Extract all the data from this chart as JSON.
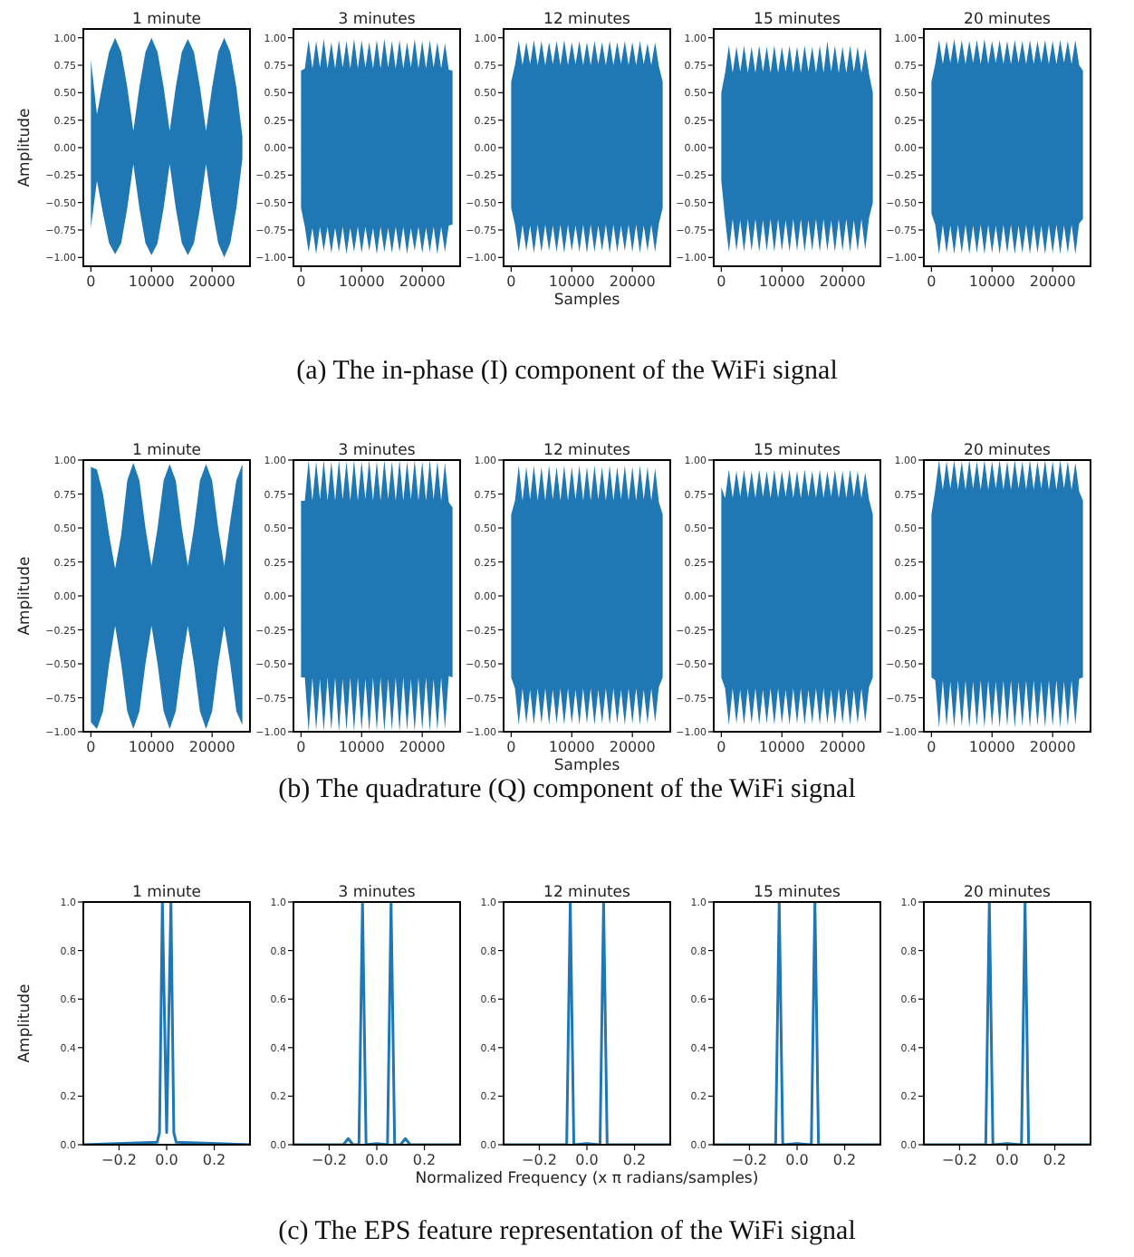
{
  "chart_data": [
    {
      "type": "area",
      "title": "1 minute",
      "ylabel": "Amplitude",
      "xlim": [
        -1250,
        26250
      ],
      "ylim": [
        -1.08,
        1.08
      ],
      "xticks": [
        0,
        10000,
        20000
      ],
      "yticks": [
        {
          "value": -1,
          "label": "−1.00"
        },
        {
          "value": -0.75,
          "label": "−0.75"
        },
        {
          "value": -0.5,
          "label": "−0.50"
        },
        {
          "value": -0.25,
          "label": "−0.25"
        },
        {
          "value": 0,
          "label": "0.00"
        },
        {
          "value": 0.25,
          "label": "0.25"
        },
        {
          "value": 0.5,
          "label": "0.50"
        },
        {
          "value": 0.75,
          "label": "0.75"
        },
        {
          "value": 1,
          "label": "1.00"
        }
      ],
      "x": [
        0,
        1000,
        2000,
        3000,
        4000,
        5000,
        6000,
        7000,
        8000,
        9000,
        10000,
        11000,
        12000,
        13000,
        14000,
        15000,
        16000,
        17000,
        18000,
        19000,
        20000,
        21000,
        22000,
        23000,
        24000,
        25000
      ],
      "series": [
        {
          "color": "#1f77b4",
          "values": [
            0.8,
            0.3,
            0.6,
            0.87,
            1,
            0.87,
            0.55,
            0.15,
            0.55,
            0.87,
            1,
            0.87,
            0.55,
            0.15,
            0.55,
            0.87,
            0.99,
            0.87,
            0.55,
            0.15,
            0.55,
            0.87,
            1,
            0.87,
            0.55,
            0.1
          ]
        },
        {
          "color": "#1f77b4",
          "values": [
            -0.73,
            -0.3,
            -0.6,
            -0.87,
            -0.97,
            -0.87,
            -0.55,
            -0.15,
            -0.55,
            -0.87,
            -0.98,
            -0.87,
            -0.55,
            -0.15,
            -0.55,
            -0.87,
            -0.98,
            -0.87,
            -0.55,
            -0.15,
            -0.55,
            -0.87,
            -1,
            -0.87,
            -0.55,
            -0.1
          ]
        }
      ]
    },
    {
      "type": "area",
      "title": "3 minutes",
      "xlim": [
        -1250,
        26250
      ],
      "ylim": [
        -1.08,
        1.08
      ],
      "xticks": [
        0,
        10000,
        20000
      ],
      "yticks": [
        {
          "value": -1,
          "label": "−1.00"
        },
        {
          "value": -0.75,
          "label": "−0.75"
        },
        {
          "value": -0.5,
          "label": "−0.50"
        },
        {
          "value": -0.25,
          "label": "−0.25"
        },
        {
          "value": 0,
          "label": "0.00"
        },
        {
          "value": 0.25,
          "label": "0.25"
        },
        {
          "value": 0.5,
          "label": "0.50"
        },
        {
          "value": 0.75,
          "label": "0.75"
        },
        {
          "value": 1,
          "label": "1.00"
        }
      ],
      "x": [
        0,
        625,
        1250,
        1875,
        2500,
        3125,
        3750,
        4375,
        5000,
        5625,
        6250,
        6875,
        7500,
        8125,
        8750,
        9375,
        10000,
        10625,
        11250,
        11875,
        12500,
        13125,
        13750,
        14375,
        15000,
        15625,
        16250,
        16875,
        17500,
        18125,
        18750,
        19375,
        20000,
        20625,
        21250,
        21875,
        22500,
        23125,
        23750,
        24375,
        25000
      ],
      "series": [
        {
          "color": "#1f77b4",
          "values": [
            0.7,
            0.72,
            0.98,
            0.72,
            0.97,
            0.73,
            0.99,
            0.72,
            0.96,
            0.72,
            0.98,
            0.73,
            0.97,
            0.72,
            0.99,
            0.72,
            0.98,
            0.73,
            0.96,
            0.72,
            0.98,
            0.72,
            0.99,
            0.73,
            0.97,
            0.72,
            0.98,
            0.72,
            0.96,
            0.73,
            0.99,
            0.72,
            0.97,
            0.72,
            0.98,
            0.73,
            0.96,
            0.72,
            0.95,
            0.71,
            0.7
          ]
        },
        {
          "color": "#1f77b4",
          "values": [
            -0.55,
            -0.72,
            -0.95,
            -0.73,
            -0.97,
            -0.72,
            -0.94,
            -0.72,
            -0.96,
            -0.73,
            -0.95,
            -0.72,
            -0.97,
            -0.73,
            -0.95,
            -0.72,
            -0.96,
            -0.72,
            -0.94,
            -0.73,
            -0.97,
            -0.72,
            -0.95,
            -0.73,
            -0.96,
            -0.72,
            -0.95,
            -0.72,
            -0.97,
            -0.73,
            -0.94,
            -0.72,
            -0.96,
            -0.73,
            -0.95,
            -0.72,
            -0.97,
            -0.72,
            -0.95,
            -0.71,
            -0.7
          ]
        }
      ]
    },
    {
      "type": "area",
      "title": "12 minutes",
      "xlabel": "Samples",
      "annotations": [
        "(a) The in-phase (I) component of the WiFi signal"
      ],
      "xlim": [
        -1250,
        26250
      ],
      "ylim": [
        -1.08,
        1.08
      ],
      "xticks": [
        0,
        10000,
        20000
      ],
      "yticks": [
        {
          "value": -1,
          "label": "−1.00"
        },
        {
          "value": -0.75,
          "label": "−0.75"
        },
        {
          "value": -0.5,
          "label": "−0.50"
        },
        {
          "value": -0.25,
          "label": "−0.25"
        },
        {
          "value": 0,
          "label": "0.00"
        },
        {
          "value": 0.25,
          "label": "0.25"
        },
        {
          "value": 0.5,
          "label": "0.50"
        },
        {
          "value": 0.75,
          "label": "0.75"
        },
        {
          "value": 1,
          "label": "1.00"
        }
      ],
      "x": [
        0,
        625,
        1250,
        1875,
        2500,
        3125,
        3750,
        4375,
        5000,
        5625,
        6250,
        6875,
        7500,
        8125,
        8750,
        9375,
        10000,
        10625,
        11250,
        11875,
        12500,
        13125,
        13750,
        14375,
        15000,
        15625,
        16250,
        16875,
        17500,
        18125,
        18750,
        19375,
        20000,
        20625,
        21250,
        21875,
        22500,
        23125,
        23750,
        24375,
        25000
      ],
      "series": [
        {
          "color": "#1f77b4",
          "values": [
            0.6,
            0.75,
            0.97,
            0.75,
            0.96,
            0.76,
            0.98,
            0.75,
            0.97,
            0.75,
            0.96,
            0.76,
            0.97,
            0.75,
            0.98,
            0.75,
            0.96,
            0.76,
            0.97,
            0.75,
            0.96,
            0.75,
            0.97,
            0.76,
            0.96,
            0.75,
            0.97,
            0.75,
            0.96,
            0.76,
            0.97,
            0.75,
            0.96,
            0.75,
            0.97,
            0.76,
            0.95,
            0.75,
            0.96,
            0.74,
            0.6
          ]
        },
        {
          "color": "#1f77b4",
          "values": [
            -0.55,
            -0.7,
            -0.95,
            -0.7,
            -0.94,
            -0.71,
            -0.96,
            -0.7,
            -0.95,
            -0.7,
            -0.94,
            -0.71,
            -0.95,
            -0.7,
            -0.96,
            -0.7,
            -0.94,
            -0.71,
            -0.95,
            -0.7,
            -0.96,
            -0.7,
            -0.95,
            -0.71,
            -0.94,
            -0.7,
            -0.96,
            -0.7,
            -0.95,
            -0.71,
            -0.94,
            -0.7,
            -0.95,
            -0.7,
            -0.96,
            -0.71,
            -0.94,
            -0.7,
            -0.95,
            -0.69,
            -0.55
          ]
        }
      ]
    },
    {
      "type": "area",
      "title": "15 minutes",
      "xlim": [
        -1250,
        26250
      ],
      "ylim": [
        -1.08,
        1.08
      ],
      "xticks": [
        0,
        10000,
        20000
      ],
      "yticks": [
        {
          "value": -1,
          "label": "−1.00"
        },
        {
          "value": -0.75,
          "label": "−0.75"
        },
        {
          "value": -0.5,
          "label": "−0.50"
        },
        {
          "value": -0.25,
          "label": "−0.25"
        },
        {
          "value": 0,
          "label": "0.00"
        },
        {
          "value": 0.25,
          "label": "0.25"
        },
        {
          "value": 0.5,
          "label": "0.50"
        },
        {
          "value": 0.75,
          "label": "0.75"
        },
        {
          "value": 1,
          "label": "1.00"
        }
      ],
      "x": [
        0,
        625,
        1250,
        1875,
        2500,
        3125,
        3750,
        4375,
        5000,
        5625,
        6250,
        6875,
        7500,
        8125,
        8750,
        9375,
        10000,
        10625,
        11250,
        11875,
        12500,
        13125,
        13750,
        14375,
        15000,
        15625,
        16250,
        16875,
        17500,
        18125,
        18750,
        19375,
        20000,
        20625,
        21250,
        21875,
        22500,
        23125,
        23750,
        24375,
        25000
      ],
      "series": [
        {
          "color": "#1f77b4",
          "values": [
            0.5,
            0.68,
            0.93,
            0.68,
            0.92,
            0.69,
            0.93,
            0.68,
            0.92,
            0.68,
            0.93,
            0.69,
            0.92,
            0.68,
            0.93,
            0.68,
            0.92,
            0.69,
            0.93,
            0.68,
            0.92,
            0.68,
            0.93,
            0.69,
            0.92,
            0.68,
            0.93,
            0.68,
            0.97,
            0.69,
            0.93,
            0.68,
            0.92,
            0.68,
            0.93,
            0.69,
            0.92,
            0.68,
            0.9,
            0.67,
            0.5
          ]
        },
        {
          "color": "#1f77b4",
          "values": [
            -0.3,
            -0.65,
            -0.95,
            -0.65,
            -0.94,
            -0.66,
            -0.95,
            -0.65,
            -0.94,
            -0.65,
            -0.95,
            -0.66,
            -0.94,
            -0.65,
            -0.95,
            -0.65,
            -0.94,
            -0.66,
            -0.95,
            -0.65,
            -0.94,
            -0.65,
            -0.95,
            -0.66,
            -0.94,
            -0.65,
            -0.95,
            -0.65,
            -0.94,
            -0.66,
            -0.95,
            -0.65,
            -0.94,
            -0.65,
            -0.95,
            -0.66,
            -0.94,
            -0.65,
            -0.93,
            -0.64,
            -0.5
          ]
        }
      ]
    },
    {
      "type": "area",
      "title": "20 minutes",
      "xlim": [
        -1250,
        26250
      ],
      "ylim": [
        -1.08,
        1.08
      ],
      "xticks": [
        0,
        10000,
        20000
      ],
      "yticks": [
        {
          "value": -1,
          "label": "−1.00"
        },
        {
          "value": -0.75,
          "label": "−0.75"
        },
        {
          "value": -0.5,
          "label": "−0.50"
        },
        {
          "value": -0.25,
          "label": "−0.25"
        },
        {
          "value": 0,
          "label": "0.00"
        },
        {
          "value": 0.25,
          "label": "0.25"
        },
        {
          "value": 0.5,
          "label": "0.50"
        },
        {
          "value": 0.75,
          "label": "0.75"
        },
        {
          "value": 1,
          "label": "1.00"
        }
      ],
      "x": [
        0,
        625,
        1250,
        1875,
        2500,
        3125,
        3750,
        4375,
        5000,
        5625,
        6250,
        6875,
        7500,
        8125,
        8750,
        9375,
        10000,
        10625,
        11250,
        11875,
        12500,
        13125,
        13750,
        14375,
        15000,
        15625,
        16250,
        16875,
        17500,
        18125,
        18750,
        19375,
        20000,
        20625,
        21250,
        21875,
        22500,
        23125,
        23750,
        24375,
        25000
      ],
      "series": [
        {
          "color": "#1f77b4",
          "values": [
            0.6,
            0.76,
            0.98,
            0.76,
            0.97,
            0.77,
            0.99,
            0.76,
            0.98,
            0.76,
            0.97,
            0.77,
            0.98,
            0.76,
            0.99,
            0.76,
            0.97,
            0.77,
            0.98,
            0.76,
            0.97,
            0.76,
            0.98,
            0.77,
            0.97,
            0.76,
            0.98,
            0.76,
            0.97,
            0.77,
            0.98,
            0.76,
            0.97,
            0.76,
            0.98,
            0.77,
            0.97,
            0.76,
            0.98,
            0.75,
            0.7
          ]
        },
        {
          "color": "#1f77b4",
          "values": [
            -0.6,
            -0.7,
            -0.97,
            -0.7,
            -0.96,
            -0.71,
            -0.97,
            -0.7,
            -0.96,
            -0.7,
            -0.97,
            -0.71,
            -0.96,
            -0.7,
            -0.97,
            -0.7,
            -0.96,
            -0.71,
            -0.97,
            -0.7,
            -0.96,
            -0.7,
            -0.97,
            -0.71,
            -0.96,
            -0.7,
            -0.97,
            -0.7,
            -0.96,
            -0.71,
            -0.97,
            -0.7,
            -0.96,
            -0.7,
            -0.97,
            -0.71,
            -0.96,
            -0.7,
            -0.97,
            -0.69,
            -0.65
          ]
        }
      ]
    },
    {
      "type": "area",
      "title": "1 minute",
      "ylabel": "Amplitude",
      "xlim": [
        -1250,
        26250
      ],
      "ylim": [
        -1,
        1
      ],
      "xticks": [
        0,
        10000,
        20000
      ],
      "yticks": [
        {
          "value": -1,
          "label": "−1.00"
        },
        {
          "value": -0.75,
          "label": "−0.75"
        },
        {
          "value": -0.5,
          "label": "−0.50"
        },
        {
          "value": -0.25,
          "label": "−0.25"
        },
        {
          "value": 0,
          "label": "0.00"
        },
        {
          "value": 0.25,
          "label": "0.25"
        },
        {
          "value": 0.5,
          "label": "0.50"
        },
        {
          "value": 0.75,
          "label": "0.75"
        },
        {
          "value": 1,
          "label": "1.00"
        }
      ],
      "x": [
        0,
        1000,
        2000,
        3000,
        4000,
        5000,
        6000,
        7000,
        8000,
        9000,
        10000,
        11000,
        12000,
        13000,
        14000,
        15000,
        16000,
        17000,
        18000,
        19000,
        20000,
        21000,
        22000,
        23000,
        24000,
        25000
      ],
      "series": [
        {
          "color": "#1f77b4",
          "values": [
            0.95,
            0.93,
            0.75,
            0.45,
            0.2,
            0.45,
            0.85,
            0.98,
            0.85,
            0.5,
            0.22,
            0.5,
            0.85,
            0.97,
            0.85,
            0.5,
            0.22,
            0.5,
            0.85,
            0.97,
            0.85,
            0.5,
            0.22,
            0.55,
            0.85,
            0.97
          ]
        },
        {
          "color": "#1f77b4",
          "values": [
            -0.93,
            -0.98,
            -0.85,
            -0.5,
            -0.22,
            -0.5,
            -0.85,
            -0.98,
            -0.85,
            -0.5,
            -0.22,
            -0.5,
            -0.85,
            -0.98,
            -0.85,
            -0.5,
            -0.22,
            -0.5,
            -0.85,
            -0.98,
            -0.85,
            -0.5,
            -0.22,
            -0.5,
            -0.85,
            -0.95
          ]
        }
      ]
    },
    {
      "type": "area",
      "title": "3 minutes",
      "xlim": [
        -1250,
        26250
      ],
      "ylim": [
        -1,
        1
      ],
      "xticks": [
        0,
        10000,
        20000
      ],
      "yticks": [
        {
          "value": -1,
          "label": "−1.00"
        },
        {
          "value": -0.75,
          "label": "−0.75"
        },
        {
          "value": -0.5,
          "label": "−0.50"
        },
        {
          "value": -0.25,
          "label": "−0.25"
        },
        {
          "value": 0,
          "label": "0.00"
        },
        {
          "value": 0.25,
          "label": "0.25"
        },
        {
          "value": 0.5,
          "label": "0.50"
        },
        {
          "value": 0.75,
          "label": "0.75"
        },
        {
          "value": 1,
          "label": "1.00"
        }
      ],
      "x": [
        0,
        625,
        1250,
        1875,
        2500,
        3125,
        3750,
        4375,
        5000,
        5625,
        6250,
        6875,
        7500,
        8125,
        8750,
        9375,
        10000,
        10625,
        11250,
        11875,
        12500,
        13125,
        13750,
        14375,
        15000,
        15625,
        16250,
        16875,
        17500,
        18125,
        18750,
        19375,
        20000,
        20625,
        21250,
        21875,
        22500,
        23125,
        23750,
        24375,
        25000
      ],
      "series": [
        {
          "color": "#1f77b4",
          "values": [
            0.7,
            0.7,
            1,
            0.7,
            0.99,
            0.71,
            1,
            0.7,
            0.99,
            0.7,
            1,
            0.71,
            0.99,
            0.7,
            1,
            0.7,
            0.99,
            0.71,
            1,
            0.7,
            0.99,
            0.7,
            1,
            0.71,
            0.99,
            0.7,
            1,
            0.7,
            0.99,
            0.71,
            1,
            0.7,
            0.99,
            0.7,
            1,
            0.71,
            0.99,
            0.7,
            0.98,
            0.69,
            0.65
          ]
        },
        {
          "color": "#1f77b4",
          "values": [
            -0.6,
            -0.6,
            -1,
            -0.6,
            -0.99,
            -0.61,
            -1,
            -0.6,
            -0.99,
            -0.6,
            -1,
            -0.61,
            -0.99,
            -0.6,
            -1,
            -0.6,
            -0.99,
            -0.61,
            -1,
            -0.6,
            -0.99,
            -0.6,
            -1,
            -0.61,
            -0.99,
            -0.6,
            -1,
            -0.6,
            -0.99,
            -0.61,
            -1,
            -0.6,
            -0.99,
            -0.6,
            -1,
            -0.61,
            -0.99,
            -0.6,
            -0.98,
            -0.59,
            -0.6
          ]
        }
      ]
    },
    {
      "type": "area",
      "title": "12 minutes",
      "xlabel": "Samples",
      "annotations": [
        "(b) The quadrature (Q) component of the WiFi signal"
      ],
      "xlim": [
        -1250,
        26250
      ],
      "ylim": [
        -1,
        1
      ],
      "xticks": [
        0,
        10000,
        20000
      ],
      "yticks": [
        {
          "value": -1,
          "label": "−1.00"
        },
        {
          "value": -0.75,
          "label": "−0.75"
        },
        {
          "value": -0.5,
          "label": "−0.50"
        },
        {
          "value": -0.25,
          "label": "−0.25"
        },
        {
          "value": 0,
          "label": "0.00"
        },
        {
          "value": 0.25,
          "label": "0.25"
        },
        {
          "value": 0.5,
          "label": "0.50"
        },
        {
          "value": 0.75,
          "label": "0.75"
        },
        {
          "value": 1,
          "label": "1.00"
        }
      ],
      "x": [
        0,
        625,
        1250,
        1875,
        2500,
        3125,
        3750,
        4375,
        5000,
        5625,
        6250,
        6875,
        7500,
        8125,
        8750,
        9375,
        10000,
        10625,
        11250,
        11875,
        12500,
        13125,
        13750,
        14375,
        15000,
        15625,
        16250,
        16875,
        17500,
        18125,
        18750,
        19375,
        20000,
        20625,
        21250,
        21875,
        22500,
        23125,
        23750,
        24375,
        25000
      ],
      "series": [
        {
          "color": "#1f77b4",
          "values": [
            0.6,
            0.7,
            0.96,
            0.7,
            0.95,
            0.71,
            0.96,
            0.7,
            0.95,
            0.7,
            0.96,
            0.71,
            0.95,
            0.7,
            0.96,
            0.7,
            0.95,
            0.71,
            0.96,
            0.7,
            0.95,
            0.7,
            0.96,
            0.71,
            0.95,
            0.7,
            0.96,
            0.7,
            0.95,
            0.71,
            0.96,
            0.7,
            0.95,
            0.7,
            0.96,
            0.71,
            0.95,
            0.7,
            0.94,
            0.69,
            0.6
          ]
        },
        {
          "color": "#1f77b4",
          "values": [
            -0.6,
            -0.68,
            -0.95,
            -0.68,
            -0.94,
            -0.69,
            -0.95,
            -0.68,
            -0.94,
            -0.68,
            -0.95,
            -0.69,
            -0.94,
            -0.68,
            -0.95,
            -0.68,
            -0.94,
            -0.69,
            -0.95,
            -0.68,
            -0.94,
            -0.68,
            -0.95,
            -0.69,
            -0.94,
            -0.68,
            -0.95,
            -0.68,
            -0.94,
            -0.69,
            -0.95,
            -0.68,
            -0.94,
            -0.68,
            -0.95,
            -0.69,
            -0.94,
            -0.68,
            -0.93,
            -0.67,
            -0.6
          ]
        }
      ]
    },
    {
      "type": "area",
      "title": "15 minutes",
      "xlim": [
        -1250,
        26250
      ],
      "ylim": [
        -1,
        1
      ],
      "xticks": [
        0,
        10000,
        20000
      ],
      "yticks": [
        {
          "value": -1,
          "label": "−1.00"
        },
        {
          "value": -0.75,
          "label": "−0.75"
        },
        {
          "value": -0.5,
          "label": "−0.50"
        },
        {
          "value": -0.25,
          "label": "−0.25"
        },
        {
          "value": 0,
          "label": "0.00"
        },
        {
          "value": 0.25,
          "label": "0.25"
        },
        {
          "value": 0.5,
          "label": "0.50"
        },
        {
          "value": 0.75,
          "label": "0.75"
        },
        {
          "value": 1,
          "label": "1.00"
        }
      ],
      "x": [
        0,
        625,
        1250,
        1875,
        2500,
        3125,
        3750,
        4375,
        5000,
        5625,
        6250,
        6875,
        7500,
        8125,
        8750,
        9375,
        10000,
        10625,
        11250,
        11875,
        12500,
        13125,
        13750,
        14375,
        15000,
        15625,
        16250,
        16875,
        17500,
        18125,
        18750,
        19375,
        20000,
        20625,
        21250,
        21875,
        22500,
        23125,
        23750,
        24375,
        25000
      ],
      "series": [
        {
          "color": "#1f77b4",
          "values": [
            0.8,
            0.72,
            0.93,
            0.72,
            0.92,
            0.73,
            0.93,
            0.72,
            0.92,
            0.72,
            0.93,
            0.73,
            0.92,
            0.72,
            0.93,
            0.72,
            0.92,
            0.73,
            0.93,
            0.72,
            0.92,
            0.72,
            0.93,
            0.73,
            0.92,
            0.72,
            0.93,
            0.72,
            0.92,
            0.73,
            0.93,
            0.72,
            0.92,
            0.72,
            0.93,
            0.73,
            0.92,
            0.72,
            0.91,
            0.71,
            0.6
          ]
        },
        {
          "color": "#1f77b4",
          "values": [
            -0.6,
            -0.68,
            -0.95,
            -0.68,
            -0.94,
            -0.69,
            -0.95,
            -0.68,
            -0.94,
            -0.68,
            -0.95,
            -0.69,
            -0.94,
            -0.68,
            -0.95,
            -0.68,
            -0.94,
            -0.69,
            -0.95,
            -0.68,
            -0.94,
            -0.68,
            -0.95,
            -0.69,
            -0.94,
            -0.68,
            -0.95,
            -0.68,
            -0.94,
            -0.69,
            -0.95,
            -0.68,
            -0.94,
            -0.68,
            -0.95,
            -0.69,
            -0.94,
            -0.68,
            -0.93,
            -0.67,
            -0.6
          ]
        }
      ]
    },
    {
      "type": "area",
      "title": "20 minutes",
      "xlim": [
        -1250,
        26250
      ],
      "ylim": [
        -1,
        1
      ],
      "xticks": [
        0,
        10000,
        20000
      ],
      "yticks": [
        {
          "value": -1,
          "label": "−1.00"
        },
        {
          "value": -0.75,
          "label": "−0.75"
        },
        {
          "value": -0.5,
          "label": "−0.50"
        },
        {
          "value": -0.25,
          "label": "−0.25"
        },
        {
          "value": 0,
          "label": "0.00"
        },
        {
          "value": 0.25,
          "label": "0.25"
        },
        {
          "value": 0.5,
          "label": "0.50"
        },
        {
          "value": 0.75,
          "label": "0.75"
        },
        {
          "value": 1,
          "label": "1.00"
        }
      ],
      "x": [
        0,
        625,
        1250,
        1875,
        2500,
        3125,
        3750,
        4375,
        5000,
        5625,
        6250,
        6875,
        7500,
        8125,
        8750,
        9375,
        10000,
        10625,
        11250,
        11875,
        12500,
        13125,
        13750,
        14375,
        15000,
        15625,
        16250,
        16875,
        17500,
        18125,
        18750,
        19375,
        20000,
        20625,
        21250,
        21875,
        22500,
        23125,
        23750,
        24375,
        25000
      ],
      "series": [
        {
          "color": "#1f77b4",
          "values": [
            0.6,
            0.78,
            1,
            0.78,
            0.99,
            0.79,
            1,
            0.78,
            0.99,
            0.78,
            1,
            0.79,
            0.99,
            0.78,
            1,
            0.78,
            0.99,
            0.79,
            1,
            0.78,
            0.99,
            0.78,
            1,
            0.79,
            0.99,
            0.78,
            1,
            0.78,
            0.99,
            0.79,
            1,
            0.78,
            0.99,
            0.78,
            1,
            0.79,
            0.99,
            0.78,
            0.98,
            0.77,
            0.7
          ]
        },
        {
          "color": "#1f77b4",
          "values": [
            -0.6,
            -0.62,
            -0.97,
            -0.62,
            -0.96,
            -0.63,
            -0.97,
            -0.62,
            -0.96,
            -0.62,
            -0.97,
            -0.63,
            -0.96,
            -0.62,
            -0.97,
            -0.62,
            -0.96,
            -0.63,
            -0.97,
            -0.62,
            -0.96,
            -0.62,
            -0.97,
            -0.63,
            -0.96,
            -0.62,
            -0.97,
            -0.62,
            -0.96,
            -0.63,
            -0.97,
            -0.62,
            -0.96,
            -0.62,
            -0.97,
            -0.63,
            -0.96,
            -0.62,
            -0.95,
            -0.61,
            -0.6
          ]
        }
      ]
    },
    {
      "type": "line",
      "title": "1 minute",
      "ylabel": "Amplitude",
      "xlim": [
        -0.35,
        0.35
      ],
      "ylim": [
        0,
        1
      ],
      "xticks": [
        {
          "value": -0.2,
          "label": "−0.2"
        },
        {
          "value": 0,
          "label": "0.0"
        },
        {
          "value": 0.2,
          "label": "0.2"
        }
      ],
      "yticks": [
        {
          "value": 0,
          "label": "0.0"
        },
        {
          "value": 0.2,
          "label": "0.2"
        },
        {
          "value": 0.4,
          "label": "0.4"
        },
        {
          "value": 0.6,
          "label": "0.6"
        },
        {
          "value": 0.8,
          "label": "0.8"
        },
        {
          "value": 1,
          "label": "1.0"
        }
      ],
      "x": [
        -0.35,
        -0.04,
        -0.03,
        -0.018,
        0,
        0.018,
        0.03,
        0.04,
        0.35
      ],
      "series": [
        {
          "color": "#1f77b4",
          "values": [
            0,
            0.01,
            0.05,
            1,
            0.05,
            1,
            0.05,
            0.01,
            0
          ]
        }
      ]
    },
    {
      "type": "line",
      "title": "3 minutes",
      "xlim": [
        -0.35,
        0.35
      ],
      "ylim": [
        0,
        1
      ],
      "xticks": [
        {
          "value": -0.2,
          "label": "−0.2"
        },
        {
          "value": 0,
          "label": "0.0"
        },
        {
          "value": 0.2,
          "label": "0.2"
        }
      ],
      "yticks": [
        {
          "value": 0,
          "label": "0.0"
        },
        {
          "value": 0.2,
          "label": "0.2"
        },
        {
          "value": 0.4,
          "label": "0.4"
        },
        {
          "value": 0.6,
          "label": "0.6"
        },
        {
          "value": 0.8,
          "label": "0.8"
        },
        {
          "value": 1,
          "label": "1.0"
        }
      ],
      "x": [
        -0.35,
        -0.14,
        -0.12,
        -0.1,
        -0.075,
        -0.06,
        -0.045,
        0,
        0.045,
        0.06,
        0.075,
        0.1,
        0.12,
        0.14,
        0.35
      ],
      "series": [
        {
          "color": "#1f77b4",
          "values": [
            0,
            0,
            0.025,
            0,
            0,
            1,
            0,
            0.005,
            0,
            1,
            0,
            0,
            0.025,
            0,
            0
          ]
        }
      ]
    },
    {
      "type": "line",
      "title": "12 minutes",
      "xlabel": "Normalized Frequency (x π radians/samples)",
      "annotations": [
        "(c) The EPS feature representation of the WiFi signal"
      ],
      "xlim": [
        -0.35,
        0.35
      ],
      "ylim": [
        0,
        1
      ],
      "xticks": [
        {
          "value": -0.2,
          "label": "−0.2"
        },
        {
          "value": 0,
          "label": "0.0"
        },
        {
          "value": 0.2,
          "label": "0.2"
        }
      ],
      "yticks": [
        {
          "value": 0,
          "label": "0.0"
        },
        {
          "value": 0.2,
          "label": "0.2"
        },
        {
          "value": 0.4,
          "label": "0.4"
        },
        {
          "value": 0.6,
          "label": "0.6"
        },
        {
          "value": 0.8,
          "label": "0.8"
        },
        {
          "value": 1,
          "label": "1.0"
        }
      ],
      "x": [
        -0.35,
        -0.085,
        -0.07,
        -0.055,
        0,
        0.055,
        0.07,
        0.085,
        0.35
      ],
      "series": [
        {
          "color": "#1f77b4",
          "values": [
            0,
            0,
            1,
            0,
            0.005,
            0,
            1,
            0,
            0
          ]
        }
      ]
    },
    {
      "type": "line",
      "title": "15 minutes",
      "xlim": [
        -0.35,
        0.35
      ],
      "ylim": [
        0,
        1
      ],
      "xticks": [
        {
          "value": -0.2,
          "label": "−0.2"
        },
        {
          "value": 0,
          "label": "0.0"
        },
        {
          "value": 0.2,
          "label": "0.2"
        }
      ],
      "yticks": [
        {
          "value": 0,
          "label": "0.0"
        },
        {
          "value": 0.2,
          "label": "0.2"
        },
        {
          "value": 0.4,
          "label": "0.4"
        },
        {
          "value": 0.6,
          "label": "0.6"
        },
        {
          "value": 0.8,
          "label": "0.8"
        },
        {
          "value": 1,
          "label": "1.0"
        }
      ],
      "x": [
        -0.35,
        -0.09,
        -0.075,
        -0.06,
        0,
        0.06,
        0.075,
        0.09,
        0.35
      ],
      "series": [
        {
          "color": "#1f77b4",
          "values": [
            0,
            0,
            1,
            0,
            0.005,
            0,
            1,
            0,
            0
          ]
        }
      ]
    },
    {
      "type": "line",
      "title": "20 minutes",
      "xlim": [
        -0.35,
        0.35
      ],
      "ylim": [
        0,
        1
      ],
      "xticks": [
        {
          "value": -0.2,
          "label": "−0.2"
        },
        {
          "value": 0,
          "label": "0.0"
        },
        {
          "value": 0.2,
          "label": "0.2"
        }
      ],
      "yticks": [
        {
          "value": 0,
          "label": "0.0"
        },
        {
          "value": 0.2,
          "label": "0.2"
        },
        {
          "value": 0.4,
          "label": "0.4"
        },
        {
          "value": 0.6,
          "label": "0.6"
        },
        {
          "value": 0.8,
          "label": "0.8"
        },
        {
          "value": 1,
          "label": "1.0"
        }
      ],
      "x": [
        -0.35,
        -0.09,
        -0.075,
        -0.06,
        0,
        0.06,
        0.075,
        0.09,
        0.35
      ],
      "series": [
        {
          "color": "#1f77b4",
          "values": [
            0,
            0,
            1,
            0,
            0.005,
            0,
            1,
            0,
            0
          ]
        }
      ]
    }
  ]
}
